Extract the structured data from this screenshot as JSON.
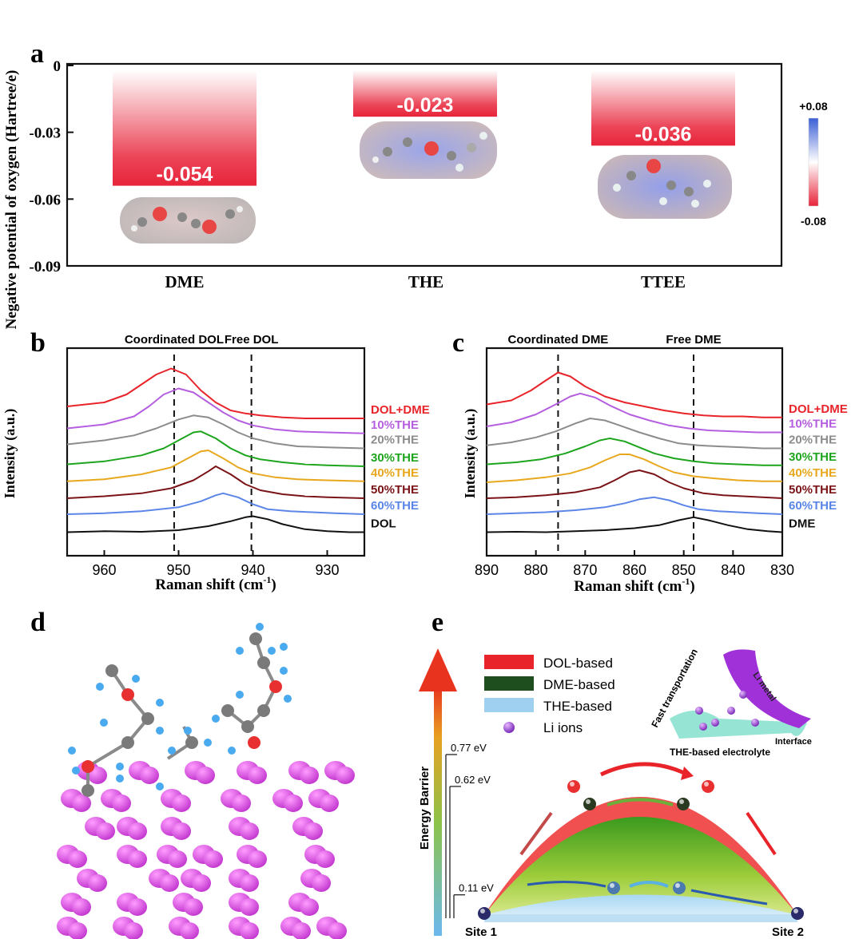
{
  "panel_labels": {
    "a": "a",
    "b": "b",
    "c": "c",
    "d": "d",
    "e": "e"
  },
  "chart_data": [
    {
      "id": "a",
      "type": "bar",
      "ylabel": "Negative potential of oxygen (Hartree/e)",
      "ylim": [
        -0.09,
        0
      ],
      "yticks": [
        "0",
        "-0.03",
        "-0.06",
        "-0.09"
      ],
      "categories": [
        "DME",
        "THE",
        "TTEE"
      ],
      "values": [
        -0.054,
        -0.023,
        -0.036
      ],
      "value_labels": [
        "-0.054",
        "-0.023",
        "-0.036"
      ],
      "colorbar": {
        "max_label": "+0.08",
        "min_label": "-0.08"
      },
      "colors": {
        "bar": "#e8243a",
        "positive": "#3b5fd6",
        "negative": "#e8243a"
      }
    },
    {
      "id": "b",
      "type": "line",
      "xlabel": "Raman shift (cm",
      "xlabel_sup": "-1",
      "xlabel_end": ")",
      "ylabel": "Intensity (a.u.)",
      "xlim": [
        965,
        925
      ],
      "xticks": [
        "960",
        "950",
        "940",
        "930"
      ],
      "annotations": [
        {
          "text": "Coordinated DOL",
          "x": 950.6
        },
        {
          "text": "Free DOL",
          "x": 940.2
        }
      ],
      "series": [
        {
          "name": "DOL+DME",
          "color": "#e8242a",
          "offset": 6.2,
          "x": [
            965,
            960,
            957,
            955,
            953,
            951,
            949,
            947,
            945,
            943,
            941,
            939,
            936,
            933,
            930,
            925
          ],
          "y": [
            0.8,
            1.0,
            1.4,
            1.9,
            2.4,
            2.7,
            2.4,
            1.6,
            1.0,
            0.6,
            0.45,
            0.35,
            0.25,
            0.2,
            0.2,
            0.2
          ]
        },
        {
          "name": "10%THE",
          "color": "#b55fe0",
          "offset": 5.4,
          "x": [
            965,
            960,
            956,
            954,
            952,
            950,
            948,
            946,
            944,
            942,
            940,
            937,
            934,
            930,
            925
          ],
          "y": [
            0.5,
            0.7,
            1.1,
            1.6,
            2.2,
            2.5,
            2.3,
            1.8,
            1.3,
            0.9,
            0.65,
            0.45,
            0.35,
            0.3,
            0.25
          ]
        },
        {
          "name": "20%THE",
          "color": "#8c8c8c",
          "offset": 4.6,
          "x": [
            965,
            960,
            956,
            953,
            950,
            948,
            946,
            944,
            942,
            940,
            937,
            934,
            930,
            925
          ],
          "y": [
            0.5,
            0.7,
            0.95,
            1.3,
            1.75,
            1.95,
            1.85,
            1.5,
            1.1,
            0.8,
            0.55,
            0.4,
            0.35,
            0.3
          ]
        },
        {
          "name": "30%THE",
          "color": "#1ea51e",
          "offset": 3.8,
          "x": [
            965,
            960,
            955,
            952,
            950,
            948,
            947,
            945,
            943,
            941,
            939,
            936,
            933,
            930,
            925
          ],
          "y": [
            0.3,
            0.45,
            0.75,
            1.1,
            1.5,
            1.9,
            1.95,
            1.6,
            1.1,
            0.75,
            0.55,
            0.4,
            0.3,
            0.25,
            0.2
          ]
        },
        {
          "name": "40%THE",
          "color": "#e8a81e",
          "offset": 3.0,
          "x": [
            965,
            960,
            955,
            951,
            949,
            947,
            946,
            944,
            942,
            940,
            937,
            934,
            930,
            925
          ],
          "y": [
            0.25,
            0.35,
            0.6,
            0.95,
            1.35,
            1.75,
            1.8,
            1.4,
            0.95,
            0.65,
            0.45,
            0.35,
            0.3,
            0.25
          ]
        },
        {
          "name": "50%THE",
          "color": "#7a1418",
          "offset": 2.2,
          "x": [
            965,
            960,
            955,
            951,
            948,
            946,
            945,
            943,
            941,
            939,
            936,
            933,
            930,
            925
          ],
          "y": [
            0.2,
            0.3,
            0.45,
            0.7,
            1.1,
            1.55,
            1.8,
            1.4,
            0.9,
            0.6,
            0.4,
            0.3,
            0.25,
            0.2
          ]
        },
        {
          "name": "60%THE",
          "color": "#5b86e8",
          "offset": 1.4,
          "x": [
            965,
            960,
            955,
            950,
            947,
            945,
            944,
            942,
            940,
            938,
            935,
            932,
            929,
            925
          ],
          "y": [
            0.2,
            0.25,
            0.35,
            0.55,
            0.85,
            1.15,
            1.25,
            1.05,
            0.7,
            0.45,
            0.35,
            0.3,
            0.25,
            0.2
          ]
        },
        {
          "name": "DOL",
          "color": "#111111",
          "offset": 0.6,
          "x": [
            965,
            960,
            955,
            950,
            946,
            943,
            941,
            940,
            938,
            936,
            933,
            930,
            927,
            925
          ],
          "y": [
            0.1,
            0.15,
            0.12,
            0.2,
            0.4,
            0.65,
            0.85,
            0.9,
            0.75,
            0.5,
            0.25,
            0.15,
            0.1,
            0.1
          ]
        }
      ]
    },
    {
      "id": "c",
      "type": "line",
      "xlabel": "Raman shift (cm",
      "xlabel_sup": "-1",
      "xlabel_end": ")",
      "ylabel": "Intensity (a.u.)",
      "xlim": [
        890,
        830
      ],
      "xticks": [
        "890",
        "880",
        "870",
        "860",
        "850",
        "840",
        "830"
      ],
      "annotations": [
        {
          "text": "Coordinated DME",
          "x": 875.5
        },
        {
          "text": "Free DME",
          "x": 848
        }
      ],
      "series": [
        {
          "name": "DOL+DME",
          "color": "#e8242a",
          "offset": 6.2,
          "x": [
            890,
            885,
            881,
            878,
            875.5,
            873,
            870,
            866,
            862,
            858,
            854,
            850,
            846,
            842,
            838,
            834,
            830
          ],
          "y": [
            0.9,
            1.1,
            1.6,
            2.1,
            2.5,
            2.3,
            1.8,
            1.3,
            1.0,
            0.8,
            0.6,
            0.45,
            0.35,
            0.3,
            0.3,
            0.25,
            0.25
          ]
        },
        {
          "name": "10%THE",
          "color": "#b55fe0",
          "offset": 5.4,
          "x": [
            890,
            885,
            880,
            876,
            873,
            871,
            868,
            865,
            861,
            857,
            853,
            849,
            845,
            840,
            835,
            830
          ],
          "y": [
            0.6,
            0.8,
            1.2,
            1.7,
            2.1,
            2.25,
            2.05,
            1.65,
            1.2,
            0.9,
            0.65,
            0.5,
            0.4,
            0.35,
            0.3,
            0.3
          ]
        },
        {
          "name": "20%THE",
          "color": "#8c8c8c",
          "offset": 4.6,
          "x": [
            890,
            885,
            880,
            876,
            872,
            869,
            866,
            863,
            859,
            855,
            851,
            847,
            843,
            838,
            834,
            830
          ],
          "y": [
            0.45,
            0.6,
            0.85,
            1.15,
            1.55,
            1.8,
            1.7,
            1.45,
            1.1,
            0.8,
            0.55,
            0.45,
            0.4,
            0.35,
            0.3,
            0.3
          ]
        },
        {
          "name": "30%THE",
          "color": "#1ea51e",
          "offset": 3.8,
          "x": [
            890,
            884,
            879,
            874,
            870,
            867,
            865,
            862,
            859,
            856,
            852,
            848,
            844,
            839,
            834,
            830
          ],
          "y": [
            0.3,
            0.4,
            0.55,
            0.85,
            1.2,
            1.5,
            1.6,
            1.45,
            1.15,
            0.85,
            0.6,
            0.45,
            0.35,
            0.3,
            0.25,
            0.25
          ]
        },
        {
          "name": "40%THE",
          "color": "#e8a81e",
          "offset": 3.0,
          "x": [
            890,
            884,
            878,
            873,
            869,
            866,
            863,
            861,
            858,
            855,
            852,
            848,
            844,
            839,
            834,
            830
          ],
          "y": [
            0.2,
            0.3,
            0.45,
            0.65,
            0.95,
            1.3,
            1.6,
            1.6,
            1.35,
            1.0,
            0.7,
            0.5,
            0.4,
            0.3,
            0.25,
            0.25
          ]
        },
        {
          "name": "50%THE",
          "color": "#7a1418",
          "offset": 2.2,
          "x": [
            890,
            884,
            878,
            872,
            867,
            864,
            861,
            859,
            856,
            853,
            850,
            846,
            842,
            838,
            834,
            830
          ],
          "y": [
            0.2,
            0.25,
            0.35,
            0.5,
            0.75,
            1.1,
            1.5,
            1.6,
            1.4,
            1.0,
            0.7,
            0.45,
            0.35,
            0.3,
            0.25,
            0.2
          ]
        },
        {
          "name": "60%THE",
          "color": "#5b86e8",
          "offset": 1.4,
          "x": [
            890,
            884,
            878,
            872,
            866,
            862,
            859,
            856,
            853,
            850,
            847,
            843,
            839,
            835,
            830
          ],
          "y": [
            0.2,
            0.25,
            0.3,
            0.4,
            0.55,
            0.75,
            0.95,
            1.05,
            0.9,
            0.65,
            0.45,
            0.35,
            0.3,
            0.25,
            0.2
          ]
        },
        {
          "name": "DME",
          "color": "#111111",
          "offset": 0.6,
          "x": [
            890,
            884,
            878,
            872,
            866,
            860,
            855,
            851,
            848,
            845,
            841,
            837,
            833,
            830
          ],
          "y": [
            0.1,
            0.12,
            0.1,
            0.15,
            0.2,
            0.3,
            0.45,
            0.7,
            0.85,
            0.7,
            0.45,
            0.25,
            0.15,
            0.1
          ]
        }
      ]
    },
    {
      "id": "e",
      "type": "area",
      "ylabel": "Energy Barrier",
      "x_labels": [
        "Site 1",
        "Site 2"
      ],
      "levels": [
        {
          "label": "0.77 eV",
          "value": 0.77
        },
        {
          "label": "0.62 eV",
          "value": 0.62
        },
        {
          "label": "0.11 eV",
          "value": 0.11
        }
      ],
      "legend": [
        {
          "label": "DOL-based",
          "color": "#e8242a"
        },
        {
          "label": "DME-based",
          "color": "#1e4d1e"
        },
        {
          "label": "THE-based",
          "color": "#9fd0f0"
        },
        {
          "label": "Li ions",
          "color": "#a44ee0"
        }
      ],
      "inset_labels": {
        "fast": "Fast transportation",
        "metal": "Li metal",
        "interface": "Interface",
        "electrolyte": "THE-based electrolyte"
      }
    }
  ]
}
